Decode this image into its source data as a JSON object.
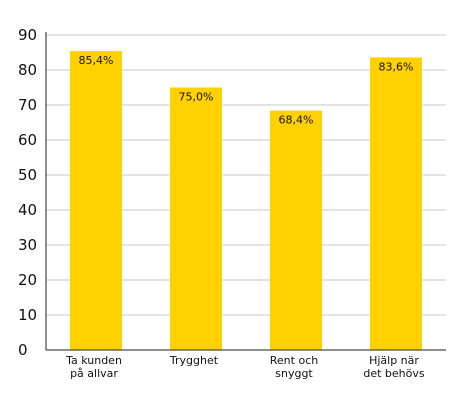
{
  "chart_data": {
    "type": "bar",
    "categories": [
      [
        "Ta kunden",
        "på allvar"
      ],
      [
        "Trygghet"
      ],
      [
        "Rent och",
        "snyggt"
      ],
      [
        "Hjälp när",
        "det behövs"
      ]
    ],
    "values": [
      85.4,
      75.0,
      68.4,
      83.6
    ],
    "data_labels": [
      "85,4%",
      "75,0%",
      "68,4%",
      "83,6%"
    ],
    "yticks": [
      "0",
      "10",
      "20",
      "30",
      "40",
      "50",
      "60",
      "70",
      "80",
      "90"
    ],
    "ylim": [
      0,
      90
    ],
    "grid": true,
    "title": "",
    "xlabel": "",
    "ylabel": "",
    "colors": {
      "bar": "#FFD100",
      "grid": "#c8c8c8",
      "axis": "#222222"
    }
  }
}
